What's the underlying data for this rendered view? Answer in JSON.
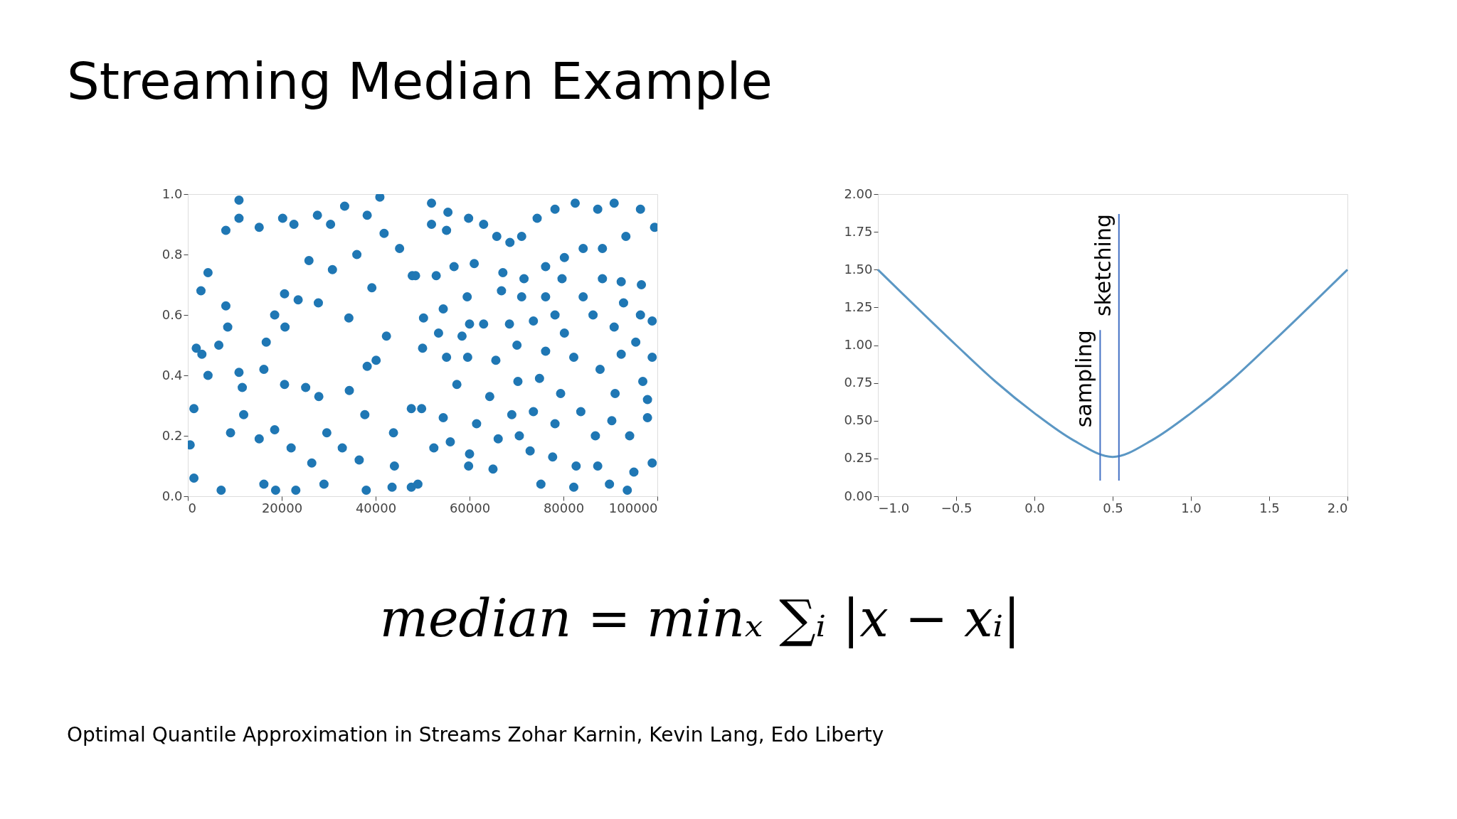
{
  "chart_data": [
    {
      "type": "scatter",
      "title": "Streaming Median Example",
      "marker": "circle",
      "grid": false,
      "legend": false,
      "xlim": [
        0,
        100000
      ],
      "xticks": [
        0,
        20000,
        40000,
        60000,
        80000,
        100000
      ],
      "ylim": [
        0,
        1
      ],
      "yticks": [
        {
          "value": 0,
          "label": "0.0"
        },
        0.2,
        0.4,
        0.6,
        0.8,
        {
          "value": 1,
          "label": "1.0"
        }
      ],
      "annotations": [
        "median = minₓ ∑ᵢ |x − xᵢ|",
        "Optimal Quantile Approximation in Streams Zohar Karnin, Kevin Lang, Edo Liberty"
      ],
      "series": [
        {
          "color": "#1f77b4",
          "x": [
            10900,
            20200,
            22600,
            10900,
            8100,
            15200,
            27600,
            30400,
            36000,
            4300,
            2800,
            8100,
            20600,
            23500,
            27800,
            8500,
            16700,
            6600,
            1800,
            18500,
            20700,
            11900,
            1300,
            9100,
            22000,
            29600,
            26400,
            1300,
            7100,
            16200,
            43500,
            37700,
            38200,
            34300,
            40100,
            42300,
            39200,
            47800,
            45100,
            41800,
            38200,
            33400,
            40900,
            25800,
            30800,
            16200,
            4300,
            10900,
            11600,
            20600,
            25100,
            27900,
            34400,
            43800,
            47600,
            44000,
            47600,
            500,
            3000,
            15200,
            18500,
            32900,
            36500,
            18700,
            23000,
            29000,
            38000,
            51900,
            55400,
            51900,
            55100,
            59800,
            63000,
            65800,
            68600,
            71100,
            74400,
            78200,
            82500,
            87300,
            90800,
            96400,
            99400,
            93300,
            88300,
            84200,
            80200,
            76200,
            71600,
            67100,
            61000,
            56700,
            52900,
            48500,
            59500,
            54400,
            50200,
            66800,
            71100,
            76200,
            79700,
            84200,
            88300,
            92300,
            96600,
            96400,
            98900,
            92800,
            86300,
            78200,
            73600,
            68500,
            63000,
            60000,
            53400,
            58400,
            80200,
            90800,
            95400,
            98900,
            92300,
            87800,
            82200,
            76200,
            70100,
            65600,
            59600,
            55100,
            50000,
            57300,
            64300,
            70300,
            74900,
            79400,
            83700,
            91000,
            97900,
            96900,
            90300,
            97900,
            94100,
            86800,
            78200,
            69000,
            73600,
            61500,
            54400,
            49800,
            52400,
            55900,
            66100,
            70600,
            60000,
            65000,
            72900,
            77700,
            82700,
            87300,
            95000,
            98900,
            89800,
            93600,
            82200,
            75200,
            59800,
            49000
          ],
          "values": [
            0.98,
            0.92,
            0.9,
            0.92,
            0.88,
            0.89,
            0.93,
            0.9,
            0.8,
            0.74,
            0.68,
            0.63,
            0.67,
            0.65,
            0.64,
            0.56,
            0.51,
            0.5,
            0.49,
            0.6,
            0.56,
            0.27,
            0.29,
            0.21,
            0.16,
            0.21,
            0.11,
            0.06,
            0.02,
            0.04,
            0.03,
            0.27,
            0.43,
            0.59,
            0.45,
            0.53,
            0.69,
            0.73,
            0.82,
            0.87,
            0.93,
            0.96,
            0.99,
            0.78,
            0.75,
            0.42,
            0.4,
            0.41,
            0.36,
            0.37,
            0.36,
            0.33,
            0.35,
            0.21,
            0.29,
            0.1,
            0.03,
            0.17,
            0.47,
            0.19,
            0.22,
            0.16,
            0.12,
            0.02,
            0.02,
            0.04,
            0.02,
            0.97,
            0.94,
            0.9,
            0.88,
            0.92,
            0.9,
            0.86,
            0.84,
            0.86,
            0.92,
            0.95,
            0.97,
            0.95,
            0.97,
            0.95,
            0.89,
            0.86,
            0.82,
            0.82,
            0.79,
            0.76,
            0.72,
            0.74,
            0.77,
            0.76,
            0.73,
            0.73,
            0.66,
            0.62,
            0.59,
            0.68,
            0.66,
            0.66,
            0.72,
            0.66,
            0.72,
            0.71,
            0.7,
            0.6,
            0.58,
            0.64,
            0.6,
            0.6,
            0.58,
            0.57,
            0.57,
            0.57,
            0.54,
            0.53,
            0.54,
            0.56,
            0.51,
            0.46,
            0.47,
            0.42,
            0.46,
            0.48,
            0.5,
            0.45,
            0.46,
            0.46,
            0.49,
            0.37,
            0.33,
            0.38,
            0.39,
            0.34,
            0.28,
            0.34,
            0.32,
            0.38,
            0.25,
            0.26,
            0.2,
            0.2,
            0.24,
            0.27,
            0.28,
            0.24,
            0.26,
            0.29,
            0.16,
            0.18,
            0.19,
            0.2,
            0.14,
            0.09,
            0.15,
            0.13,
            0.1,
            0.1,
            0.08,
            0.11,
            0.04,
            0.02,
            0.03,
            0.04,
            0.1,
            0.04
          ]
        }
      ]
    },
    {
      "type": "line",
      "grid": false,
      "legend": false,
      "marker": "none",
      "line_style": "solid",
      "xlim": [
        -1,
        2
      ],
      "xticks": [
        {
          "value": -1,
          "label": "−1.0"
        },
        {
          "value": -0.5,
          "label": "−0.5"
        },
        {
          "value": 0,
          "label": "0.0"
        },
        0.5,
        {
          "value": 1,
          "label": "1.0"
        },
        1.5,
        {
          "value": 2,
          "label": "2.0"
        }
      ],
      "ylim": [
        0,
        2
      ],
      "yticks": [
        {
          "value": 0,
          "label": "0.00"
        },
        0.25,
        {
          "value": 0.5,
          "label": "0.50"
        },
        0.75,
        {
          "value": 1,
          "label": "1.00"
        },
        1.25,
        {
          "value": 1.5,
          "label": "1.50"
        },
        1.75,
        {
          "value": 2,
          "label": "2.00"
        }
      ],
      "ref_lines": [
        {
          "axis": "x",
          "value": 0.42,
          "label": "sampling",
          "color": "#4472c4"
        },
        {
          "axis": "x",
          "value": 0.54,
          "label": "sketching",
          "color": "#4472c4"
        }
      ],
      "series": [
        {
          "color": "#5b97c4",
          "x": [
            -1,
            -0.5,
            -0.25,
            0,
            0.25,
            0.5,
            0.75,
            1,
            1.25,
            1.5,
            2
          ],
          "values": [
            1.5,
            1.0,
            0.76,
            0.55,
            0.37,
            0.26,
            0.37,
            0.55,
            0.76,
            1.0,
            1.5
          ]
        }
      ]
    }
  ]
}
